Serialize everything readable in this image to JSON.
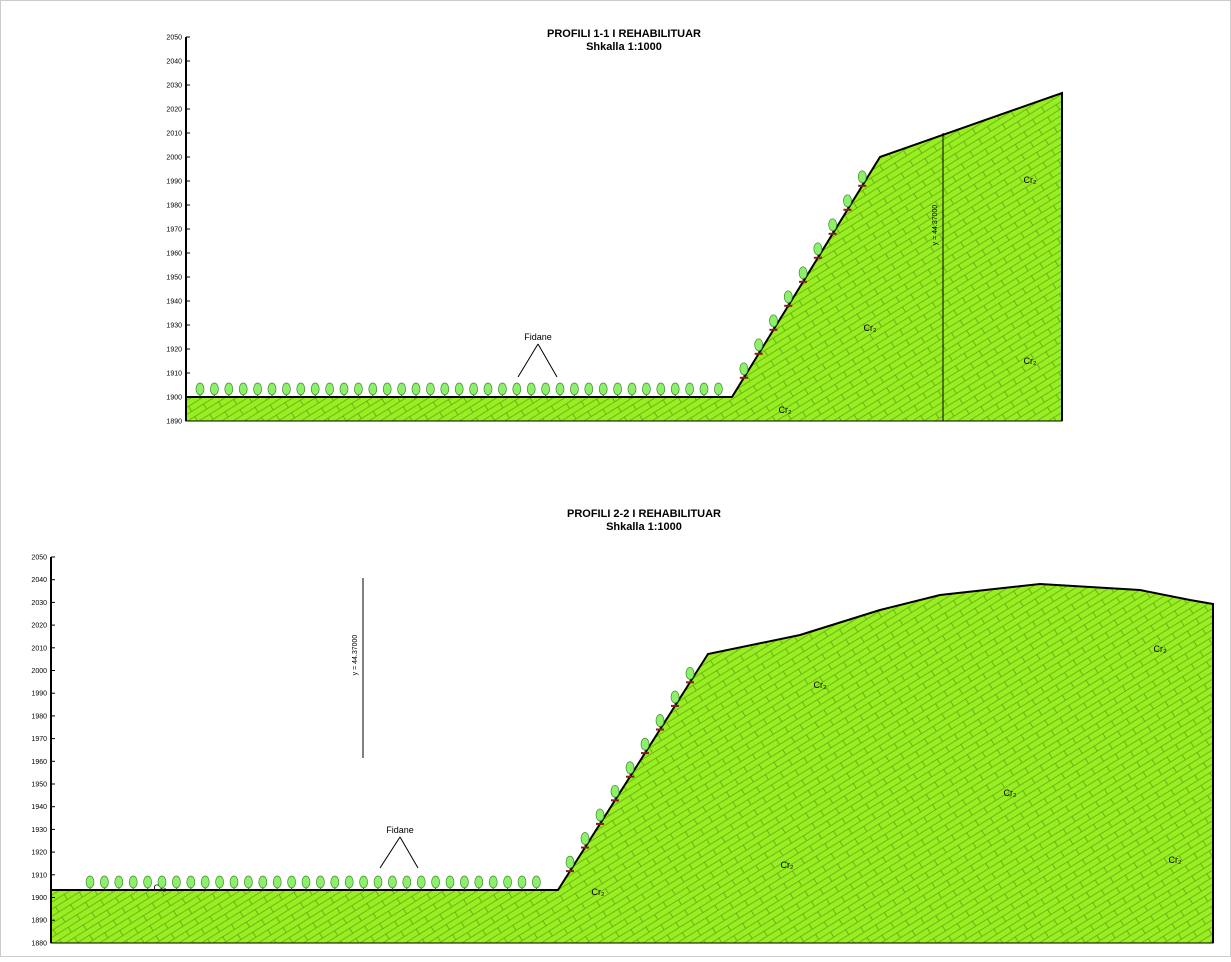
{
  "profiles": [
    {
      "title": "PROFILI 1-1 I REHABILITUAR",
      "scale": "Shkalla 1:1000",
      "yticks": [
        "2050",
        "2040",
        "2030",
        "2020",
        "2010",
        "2000",
        "1990",
        "1980",
        "1970",
        "1960",
        "1950",
        "1940",
        "1930",
        "1920",
        "1910",
        "1900",
        "1890"
      ],
      "annotation": "Fidane",
      "coordinate": "y = 44.37000",
      "formations": [
        "Cr₂",
        "Cr₂",
        "Cr₂",
        "Cr₂"
      ]
    },
    {
      "title": "PROFILI 2-2 I REHABILITUAR",
      "scale": "Shkalla 1:1000",
      "yticks": [
        "2050",
        "2040",
        "2030",
        "2020",
        "2010",
        "2000",
        "1990",
        "1980",
        "1970",
        "1960",
        "1950",
        "1940",
        "1930",
        "1920",
        "1910",
        "1900",
        "1890",
        "1880"
      ],
      "annotation": "Fidane",
      "coordinate": "y = 44.37000",
      "formations": [
        "Cr₂",
        "Cr₂",
        "Cr₂",
        "Cr₂",
        "Cr₂",
        "Cr₂",
        "Cr₂"
      ]
    }
  ]
}
